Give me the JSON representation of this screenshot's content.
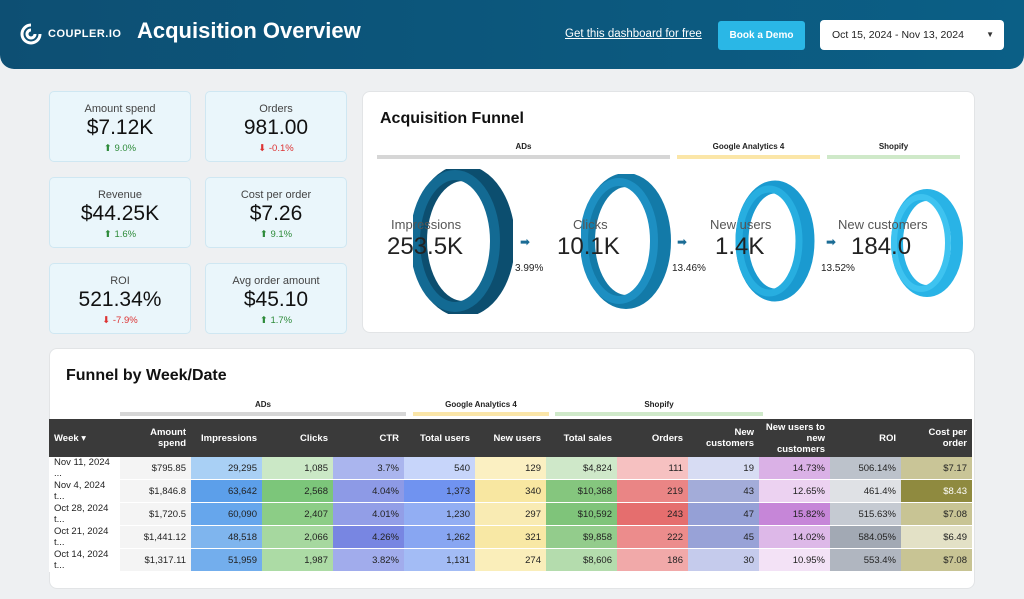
{
  "header": {
    "logo_text": "COUPLER.IO",
    "title": "Acquisition Overview",
    "link": "Get this dashboard for free",
    "demo_button": "Book a Demo",
    "date_range": "Oct 15, 2024 - Nov 13, 2024"
  },
  "kpis": [
    {
      "label": "Amount spend",
      "value": "$7.12K",
      "change": "9.0%",
      "dir": "up"
    },
    {
      "label": "Orders",
      "value": "981.00",
      "change": "-0.1%",
      "dir": "down"
    },
    {
      "label": "Revenue",
      "value": "$44.25K",
      "change": "1.6%",
      "dir": "up"
    },
    {
      "label": "Cost per order",
      "value": "$7.26",
      "change": "9.1%",
      "dir": "up"
    },
    {
      "label": "ROI",
      "value": "521.34%",
      "change": "-7.9%",
      "dir": "down"
    },
    {
      "label": "Avg order amount",
      "value": "$45.10",
      "change": "1.7%",
      "dir": "up"
    }
  ],
  "funnel": {
    "title": "Acquisition Funnel",
    "groups": [
      "ADs",
      "Google Analytics 4",
      "Shopify"
    ],
    "stages": [
      {
        "label": "Impressions",
        "value": "253.5K"
      },
      {
        "label": "Clicks",
        "value": "10.1K"
      },
      {
        "label": "New users",
        "value": "1.4K"
      },
      {
        "label": "New customers",
        "value": "184.0"
      }
    ],
    "rates": [
      "3.99%",
      "13.46%",
      "13.52%"
    ]
  },
  "weekly": {
    "title": "Funnel by Week/Date",
    "groups": [
      "ADs",
      "Google Analytics 4",
      "Shopify"
    ],
    "columns": [
      "Week",
      "Amount spend",
      "Impressions",
      "Clicks",
      "CTR",
      "Total users",
      "New users",
      "Total sales",
      "Orders",
      "New customers",
      "New users to new customers",
      "ROI",
      "Cost per order"
    ],
    "rows": [
      [
        "Nov 11, 2024 ...",
        "$795.85",
        "29,295",
        "1,085",
        "3.7%",
        "540",
        "129",
        "$4,824",
        "111",
        "19",
        "14.73%",
        "506.14%",
        "$7.17"
      ],
      [
        "Nov 4, 2024 t...",
        "$1,846.8",
        "63,642",
        "2,568",
        "4.04%",
        "1,373",
        "340",
        "$10,368",
        "219",
        "43",
        "12.65%",
        "461.4%",
        "$8.43"
      ],
      [
        "Oct 28, 2024 t...",
        "$1,720.5",
        "60,090",
        "2,407",
        "4.01%",
        "1,230",
        "297",
        "$10,592",
        "243",
        "47",
        "15.82%",
        "515.63%",
        "$7.08"
      ],
      [
        "Oct 21, 2024 t...",
        "$1,441.12",
        "48,518",
        "2,066",
        "4.26%",
        "1,262",
        "321",
        "$9,858",
        "222",
        "45",
        "14.02%",
        "584.05%",
        "$6.49"
      ],
      [
        "Oct 14, 2024 t...",
        "$1,317.11",
        "51,959",
        "1,987",
        "3.82%",
        "1,131",
        "274",
        "$8,606",
        "186",
        "30",
        "10.95%",
        "553.4%",
        "$7.08"
      ]
    ]
  }
}
